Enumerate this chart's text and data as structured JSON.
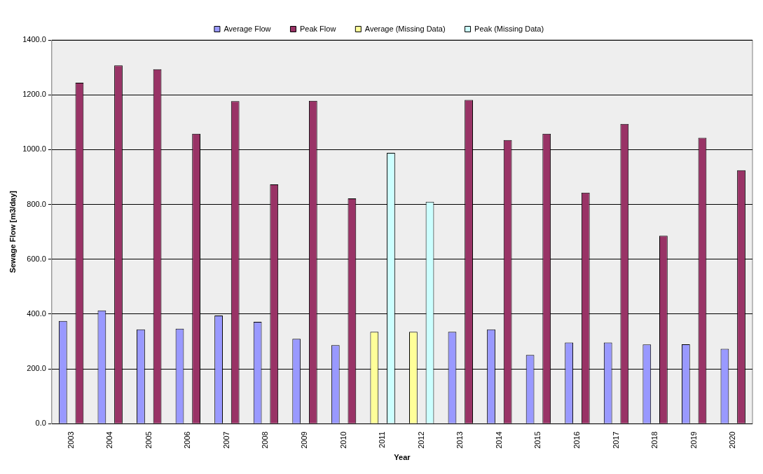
{
  "chart_data": {
    "type": "bar",
    "xlabel": "Year",
    "ylabel": "Sewage Flow [m3/day]",
    "categories": [
      "2003",
      "2004",
      "2005",
      "2006",
      "2007",
      "2008",
      "2009",
      "2010",
      "2011",
      "2012",
      "2013",
      "2014",
      "2015",
      "2016",
      "2017",
      "2018",
      "2019",
      "2020"
    ],
    "series": [
      {
        "name": "Average Flow",
        "color": "#9999ff",
        "values": [
          375,
          413,
          344,
          347,
          395,
          372,
          310,
          287,
          null,
          null,
          335,
          344,
          251,
          296,
          296,
          289,
          290,
          273
        ]
      },
      {
        "name": "Peak Flow",
        "color": "#993366",
        "values": [
          1244,
          1307,
          1293,
          1058,
          1177,
          873,
          1178,
          822,
          null,
          null,
          1181,
          1035,
          1058,
          843,
          1094,
          686,
          1043,
          925
        ]
      },
      {
        "name": "Average (Missing Data)",
        "color": "#ffff99",
        "values": [
          null,
          null,
          null,
          null,
          null,
          null,
          null,
          null,
          335,
          335,
          null,
          null,
          null,
          null,
          null,
          null,
          null,
          null
        ]
      },
      {
        "name": "Peak (Missing Data)",
        "color": "#ccffff",
        "values": [
          null,
          null,
          null,
          null,
          null,
          null,
          null,
          null,
          988,
          810,
          null,
          null,
          null,
          null,
          null,
          null,
          null,
          null
        ]
      }
    ],
    "ylim": [
      0,
      1400
    ],
    "yticks": [
      {
        "value": 0,
        "label": "0.0"
      },
      {
        "value": 200,
        "label": "200.0"
      },
      {
        "value": 400,
        "label": "400.0"
      },
      {
        "value": 600,
        "label": "600.0"
      },
      {
        "value": 800,
        "label": "800.0"
      },
      {
        "value": 1000,
        "label": "1000.0"
      },
      {
        "value": 1200,
        "label": "1200.0"
      },
      {
        "value": 1400,
        "label": "1400.0"
      }
    ],
    "grid": "y",
    "legend": "top"
  }
}
